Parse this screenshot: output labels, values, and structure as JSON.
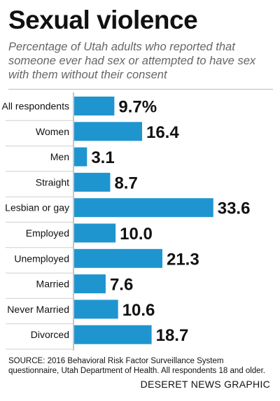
{
  "header": {
    "title": "Sexual violence",
    "subtitle": "Percentage of Utah adults who reported that someone ever had sex or attempted to have sex with them without their consent"
  },
  "chart_data": {
    "type": "bar",
    "orientation": "horizontal",
    "title": "Sexual violence",
    "categories": [
      "All respondents",
      "Women",
      "Men",
      "Straight",
      "Lesbian or gay",
      "Employed",
      "Unemployed",
      "Married",
      "Never Married",
      "Divorced"
    ],
    "values": [
      9.7,
      16.4,
      3.1,
      8.7,
      33.6,
      10.0,
      21.3,
      7.6,
      10.6,
      18.7
    ],
    "value_labels": [
      "9.7%",
      "16.4",
      "3.1",
      "8.7",
      "33.6",
      "10.0",
      "21.3",
      "7.6",
      "10.6",
      "18.7"
    ],
    "xlim": [
      0,
      35
    ],
    "grid": false,
    "bar_color": "#1f95cf"
  },
  "footer": {
    "source": "SOURCE: 2016 Behavioral Risk Factor Surveillance System questionnaire, Utah Department of Health. All respondents 18 and older.",
    "credit": "DESERET NEWS GRAPHIC"
  }
}
